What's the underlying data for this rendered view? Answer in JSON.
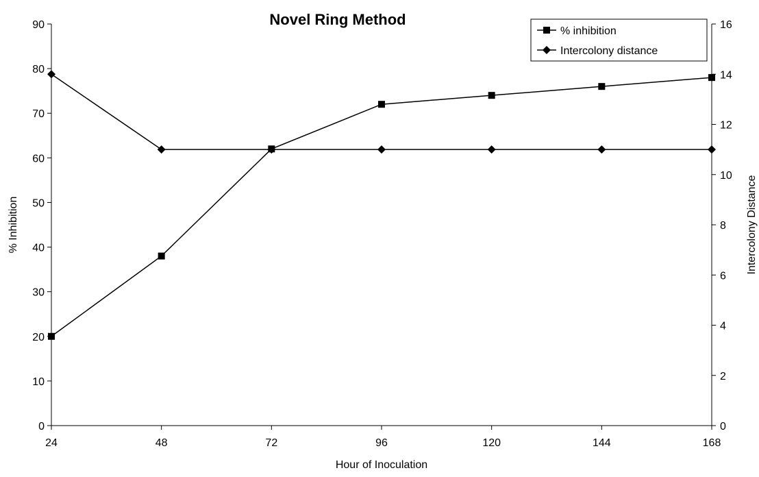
{
  "chart_data": {
    "type": "line",
    "title": "Novel Ring Method",
    "xlabel": "Hour of Inoculation",
    "ylabel_left": "% Inhibition",
    "ylabel_right": "Intercolony Distance",
    "x": [
      24,
      48,
      72,
      96,
      120,
      144,
      168
    ],
    "xlim": [
      24,
      168
    ],
    "ylim_left": [
      0,
      90
    ],
    "yticks_left": [
      0,
      10,
      20,
      30,
      40,
      50,
      60,
      70,
      80,
      90
    ],
    "ylim_right": [
      0,
      16
    ],
    "yticks_right": [
      0,
      2,
      4,
      6,
      8,
      10,
      12,
      14,
      16
    ],
    "grid": false,
    "legend_position": "top-right",
    "series": [
      {
        "name": "% inhibition",
        "axis": "left",
        "marker": "square",
        "color": "#000000",
        "values": [
          20,
          38,
          62,
          72,
          74,
          76,
          78
        ]
      },
      {
        "name": "Intercolony distance",
        "axis": "right",
        "marker": "diamond",
        "color": "#000000",
        "values": [
          14,
          11,
          11,
          11,
          11,
          11,
          11
        ]
      }
    ]
  }
}
